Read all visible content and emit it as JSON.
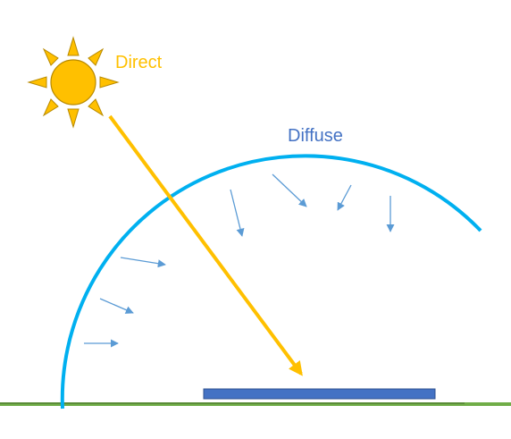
{
  "labels": {
    "direct": "Direct",
    "diffuse": "Diffuse"
  },
  "colors": {
    "direct": "#FFC000",
    "sun_outline": "#B88A00",
    "diffuse_label": "#4472C4",
    "sky_dome": "#00B0F0",
    "scatter_arrows": "#5B9BD5",
    "ground": "#70AD47",
    "ground_shadow": "#548235",
    "panel_fill": "#4472C4",
    "panel_border": "#2F528F",
    "background": "#FFFFFF"
  },
  "icons": {
    "sun": "sun-icon",
    "solar_panel": "solar-panel-icon"
  }
}
